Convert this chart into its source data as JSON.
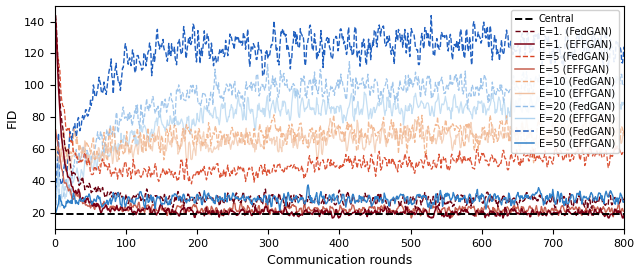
{
  "title": "",
  "xlabel": "Communication rounds",
  "ylabel": "FID",
  "xlim": [
    0,
    800
  ],
  "ylim": [
    10,
    150
  ],
  "yticks": [
    20,
    40,
    60,
    80,
    100,
    120,
    140
  ],
  "xticks": [
    0,
    100,
    200,
    300,
    400,
    500,
    600,
    700,
    800
  ],
  "central_fid": 19.5,
  "colors": {
    "central": "#000000",
    "e1_fed": "#6b0010",
    "e1_eff": "#7b0015",
    "e5_fed": "#d84020",
    "e5_eff": "#c86050",
    "e10_fed": "#f0a878",
    "e10_eff": "#f0c0a0",
    "e20_fed": "#90bce8",
    "e20_eff": "#b0d4f0",
    "e50_fed": "#2060c0",
    "e50_eff": "#3080c8"
  }
}
